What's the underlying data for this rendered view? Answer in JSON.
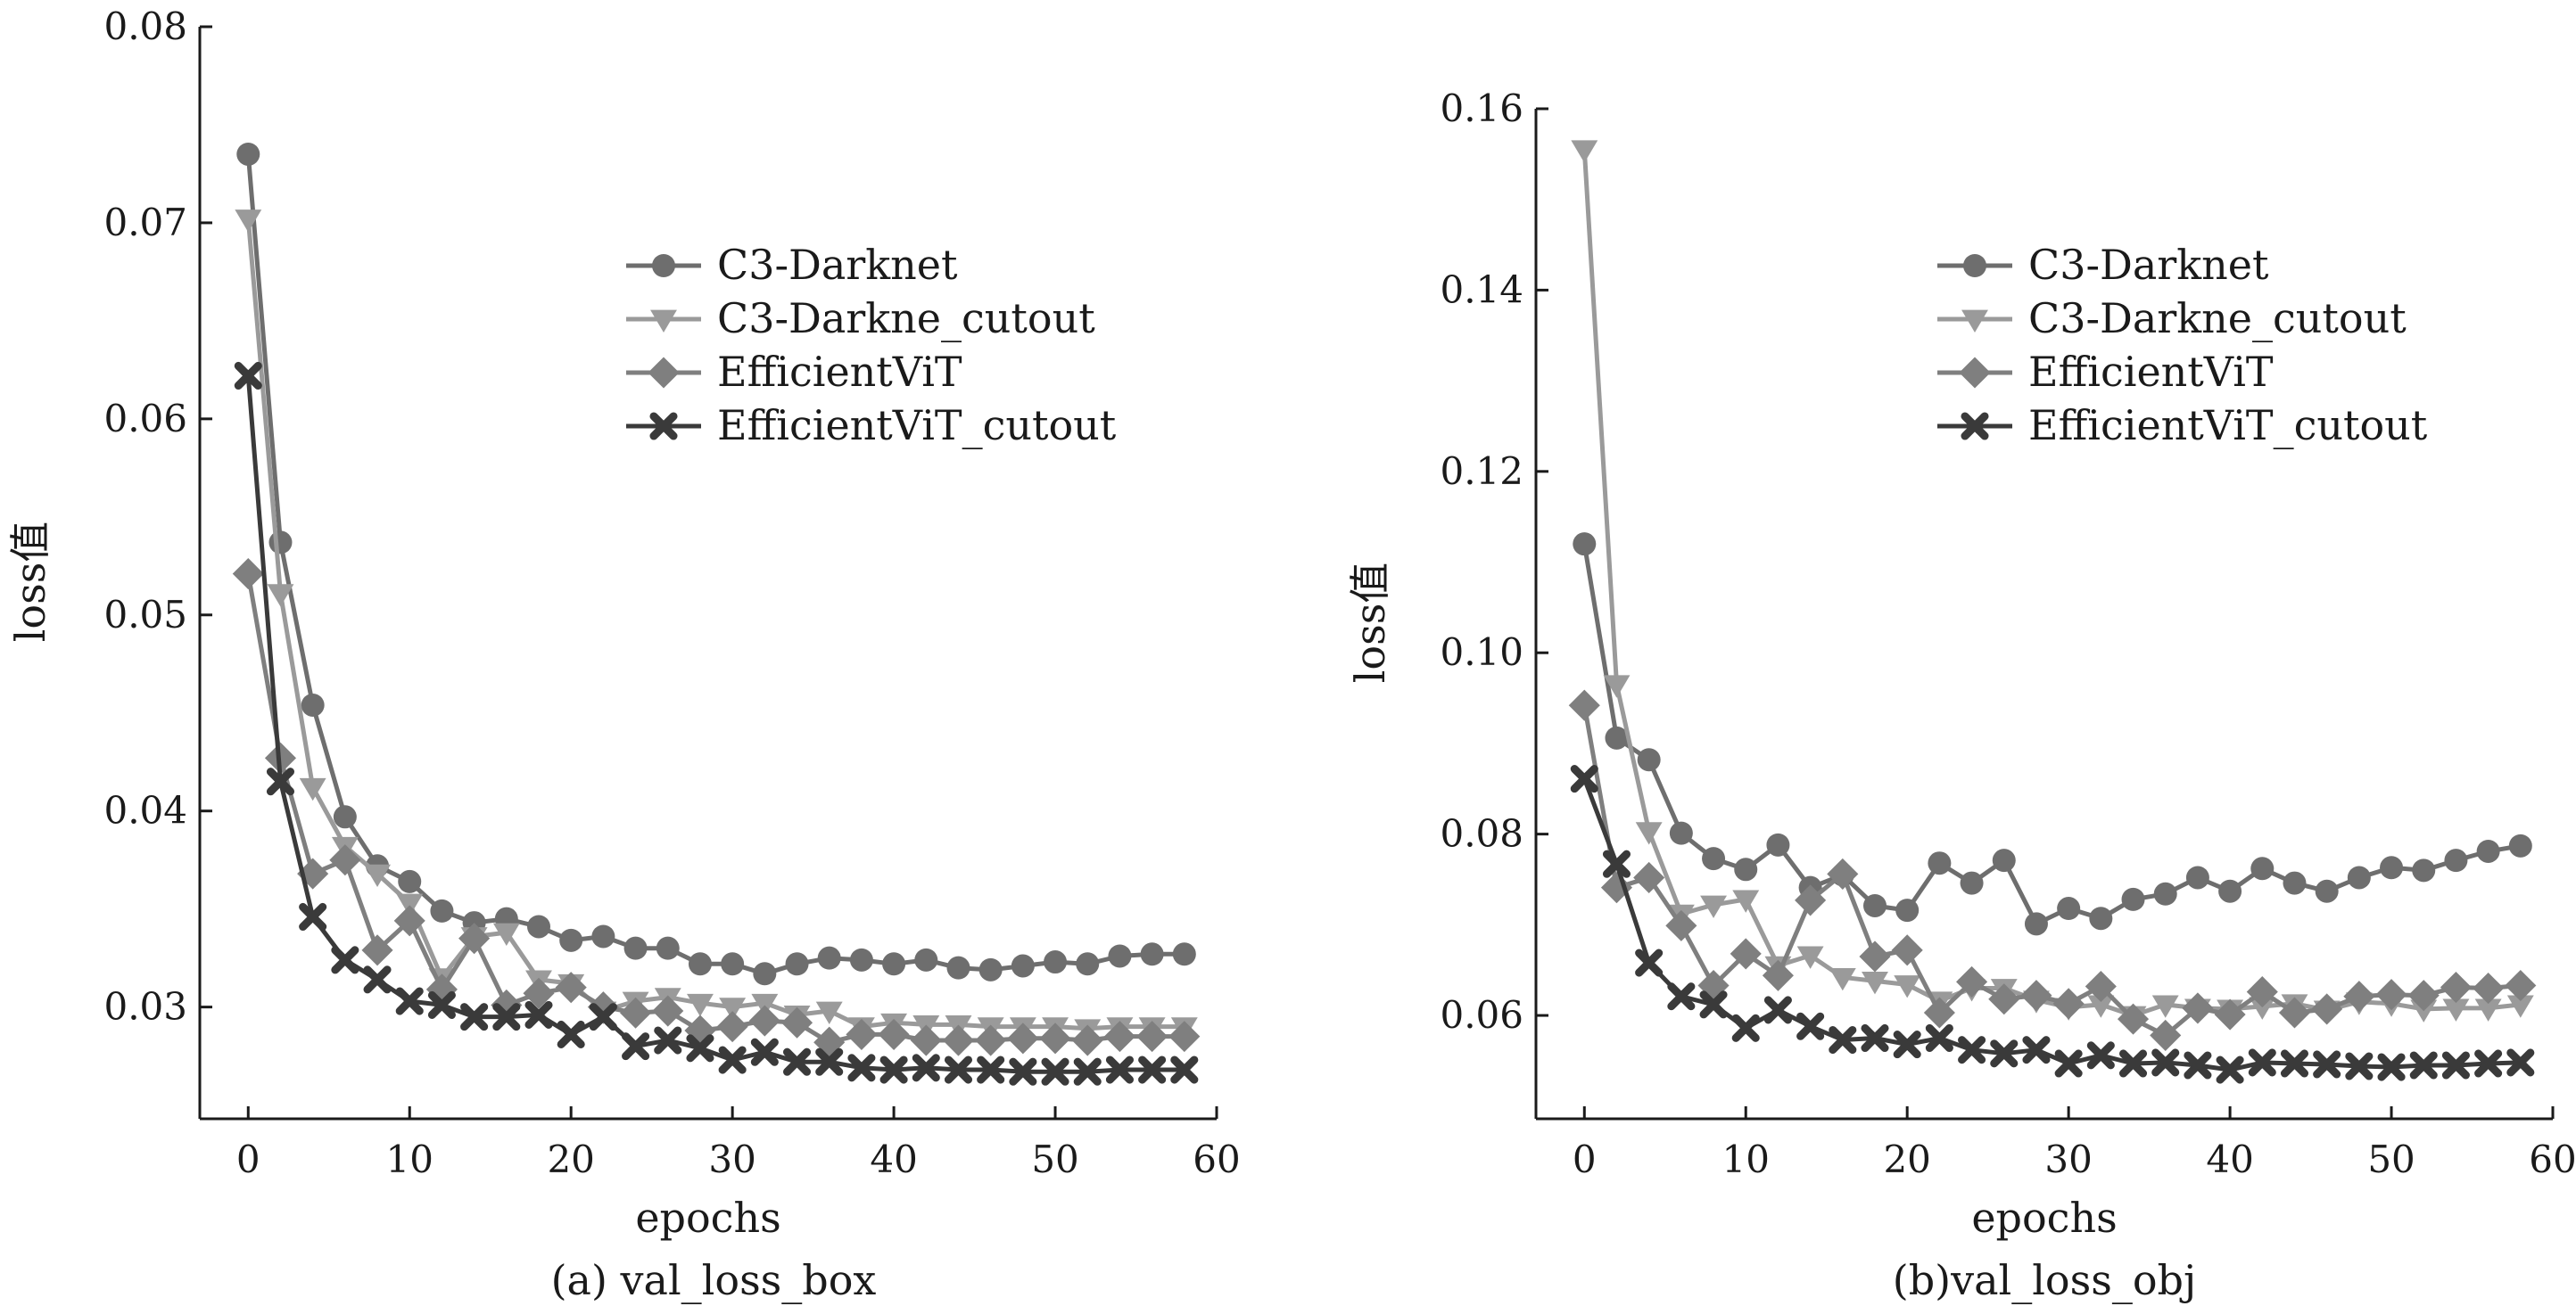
{
  "series_styles": [
    {
      "color": "#6e6e6e",
      "marker": "circle"
    },
    {
      "color": "#9a9a9a",
      "marker": "triangle-down"
    },
    {
      "color": "#7f7f7f",
      "marker": "diamond"
    },
    {
      "color": "#3a3a3a",
      "marker": "x"
    }
  ],
  "chart_data": [
    {
      "type": "line",
      "caption": "(a) val_loss_box",
      "xlabel": "epochs",
      "ylabel": "loss值",
      "xlim": [
        -3,
        60
      ],
      "ylim": [
        0.0243,
        0.08
      ],
      "xticks": [
        0,
        10,
        20,
        30,
        40,
        50,
        60
      ],
      "xtick_labels": [
        "0",
        "10",
        "20",
        "30",
        "40",
        "50",
        "60"
      ],
      "yticks": [
        0.03,
        0.04,
        0.05,
        0.06,
        0.07,
        0.08
      ],
      "ytick_labels": [
        "0.03",
        "0.04",
        "0.05",
        "0.06",
        "0.07",
        "0.08"
      ],
      "legend_position": "upper-right",
      "series": [
        {
          "name": "C3-Darknet",
          "x": [
            0,
            2,
            4,
            6,
            8,
            10,
            12,
            14,
            16,
            18,
            20,
            22,
            24,
            26,
            28,
            30,
            32,
            34,
            36,
            38,
            40,
            42,
            44,
            46,
            48,
            50,
            52,
            54,
            56,
            58
          ],
          "values": [
            0.0735,
            0.0537,
            0.0454,
            0.0397,
            0.0372,
            0.0364,
            0.0349,
            0.0343,
            0.0345,
            0.0341,
            0.0334,
            0.0336,
            0.033,
            0.033,
            0.0322,
            0.0322,
            0.0317,
            0.0322,
            0.0325,
            0.0324,
            0.0322,
            0.0324,
            0.032,
            0.0319,
            0.0321,
            0.0323,
            0.0322,
            0.0326,
            0.0327,
            0.0327
          ]
        },
        {
          "name": "C3-Darkne_cutout",
          "x": [
            0,
            2,
            4,
            6,
            8,
            10,
            12,
            14,
            16,
            18,
            20,
            22,
            24,
            26,
            28,
            30,
            32,
            34,
            36,
            38,
            40,
            42,
            44,
            46,
            48,
            50,
            52,
            54,
            56,
            58
          ],
          "values": [
            0.0702,
            0.0511,
            0.0412,
            0.0382,
            0.0368,
            0.0353,
            0.0315,
            0.0336,
            0.0338,
            0.0314,
            0.0312,
            0.0298,
            0.0303,
            0.0305,
            0.0302,
            0.03,
            0.0302,
            0.0296,
            0.0298,
            0.029,
            0.0292,
            0.0291,
            0.0291,
            0.029,
            0.029,
            0.029,
            0.0289,
            0.029,
            0.029,
            0.029
          ]
        },
        {
          "name": "EfficientViT",
          "x": [
            0,
            2,
            4,
            6,
            8,
            10,
            12,
            14,
            16,
            18,
            20,
            22,
            24,
            26,
            28,
            30,
            32,
            34,
            36,
            38,
            40,
            42,
            44,
            46,
            48,
            50,
            52,
            54,
            56,
            58
          ],
          "values": [
            0.0521,
            0.0427,
            0.0368,
            0.0375,
            0.0329,
            0.0344,
            0.0309,
            0.0335,
            0.0301,
            0.0307,
            0.031,
            0.03,
            0.0297,
            0.0298,
            0.0288,
            0.029,
            0.0293,
            0.0292,
            0.0282,
            0.0286,
            0.0286,
            0.0283,
            0.0283,
            0.0283,
            0.0284,
            0.0284,
            0.0283,
            0.0285,
            0.0285,
            0.0285
          ]
        },
        {
          "name": "EfficientViT_cutout",
          "x": [
            0,
            2,
            4,
            6,
            8,
            10,
            12,
            14,
            16,
            18,
            20,
            22,
            24,
            26,
            28,
            30,
            32,
            34,
            36,
            38,
            40,
            42,
            44,
            46,
            48,
            50,
            52,
            54,
            56,
            58
          ],
          "values": [
            0.0622,
            0.0415,
            0.0346,
            0.0324,
            0.0314,
            0.0303,
            0.0301,
            0.0295,
            0.0295,
            0.0296,
            0.0286,
            0.0295,
            0.028,
            0.0283,
            0.0279,
            0.0273,
            0.0277,
            0.0272,
            0.0272,
            0.0269,
            0.0268,
            0.0269,
            0.0268,
            0.0268,
            0.0267,
            0.0267,
            0.0267,
            0.0268,
            0.0268,
            0.0268
          ]
        }
      ]
    },
    {
      "type": "line",
      "caption": "(b)val_loss_obj",
      "xlabel": "epochs",
      "ylabel": "loss值",
      "xlim": [
        -3,
        60
      ],
      "ylim": [
        0.0486,
        0.16
      ],
      "xticks": [
        0,
        10,
        20,
        30,
        40,
        50,
        60
      ],
      "xtick_labels": [
        "0",
        "10",
        "20",
        "30",
        "40",
        "50",
        "60"
      ],
      "yticks": [
        0.06,
        0.08,
        0.1,
        0.12,
        0.14,
        0.16
      ],
      "ytick_labels": [
        "0.06",
        "0.08",
        "0.10",
        "0.12",
        "0.14",
        "0.16"
      ],
      "legend_position": "upper-right",
      "series": [
        {
          "name": "C3-Darknet",
          "x": [
            0,
            2,
            4,
            6,
            8,
            10,
            12,
            14,
            16,
            18,
            20,
            22,
            24,
            26,
            28,
            30,
            32,
            34,
            36,
            38,
            40,
            42,
            44,
            46,
            48,
            50,
            52,
            54,
            56,
            58
          ],
          "values": [
            0.112,
            0.0906,
            0.0882,
            0.0801,
            0.0773,
            0.0761,
            0.0788,
            0.0741,
            0.0755,
            0.0721,
            0.0716,
            0.0768,
            0.0746,
            0.0771,
            0.0701,
            0.0718,
            0.0707,
            0.0728,
            0.0734,
            0.0752,
            0.0737,
            0.0762,
            0.0746,
            0.0737,
            0.0752,
            0.0763,
            0.076,
            0.0771,
            0.0781,
            0.0787
          ]
        },
        {
          "name": "C3-Darkne_cutout",
          "x": [
            0,
            2,
            4,
            6,
            8,
            10,
            12,
            14,
            16,
            18,
            20,
            22,
            24,
            26,
            28,
            30,
            32,
            34,
            36,
            38,
            40,
            42,
            44,
            46,
            48,
            50,
            52,
            54,
            56,
            58
          ],
          "values": [
            0.1555,
            0.0965,
            0.0803,
            0.0712,
            0.0722,
            0.0728,
            0.0655,
            0.0666,
            0.0642,
            0.0638,
            0.0634,
            0.0616,
            0.063,
            0.063,
            0.0617,
            0.0609,
            0.0612,
            0.06,
            0.0612,
            0.0608,
            0.0607,
            0.061,
            0.0613,
            0.0606,
            0.0615,
            0.0613,
            0.0607,
            0.0608,
            0.0608,
            0.0612
          ]
        },
        {
          "name": "EfficientViT",
          "x": [
            0,
            2,
            4,
            6,
            8,
            10,
            12,
            14,
            16,
            18,
            20,
            22,
            24,
            26,
            28,
            30,
            32,
            34,
            36,
            38,
            40,
            42,
            44,
            46,
            48,
            50,
            52,
            54,
            56,
            58
          ],
          "values": [
            0.0942,
            0.0741,
            0.0752,
            0.0699,
            0.0633,
            0.0668,
            0.0644,
            0.0727,
            0.0756,
            0.0665,
            0.0672,
            0.0603,
            0.0637,
            0.0618,
            0.0622,
            0.0613,
            0.0632,
            0.0596,
            0.0578,
            0.0608,
            0.0601,
            0.0626,
            0.0603,
            0.0607,
            0.0621,
            0.0623,
            0.0622,
            0.0631,
            0.063,
            0.0633
          ]
        },
        {
          "name": "EfficientViT_cutout",
          "x": [
            0,
            2,
            4,
            6,
            8,
            10,
            12,
            14,
            16,
            18,
            20,
            22,
            24,
            26,
            28,
            30,
            32,
            34,
            36,
            38,
            40,
            42,
            44,
            46,
            48,
            50,
            52,
            54,
            56,
            58
          ],
          "values": [
            0.0861,
            0.0767,
            0.0658,
            0.0621,
            0.0612,
            0.0586,
            0.0606,
            0.0588,
            0.0573,
            0.0575,
            0.0568,
            0.0575,
            0.0562,
            0.0558,
            0.0562,
            0.0547,
            0.0556,
            0.0547,
            0.0548,
            0.0545,
            0.054,
            0.0548,
            0.0547,
            0.0546,
            0.0544,
            0.0543,
            0.0545,
            0.0545,
            0.0547,
            0.0548
          ]
        }
      ]
    }
  ]
}
